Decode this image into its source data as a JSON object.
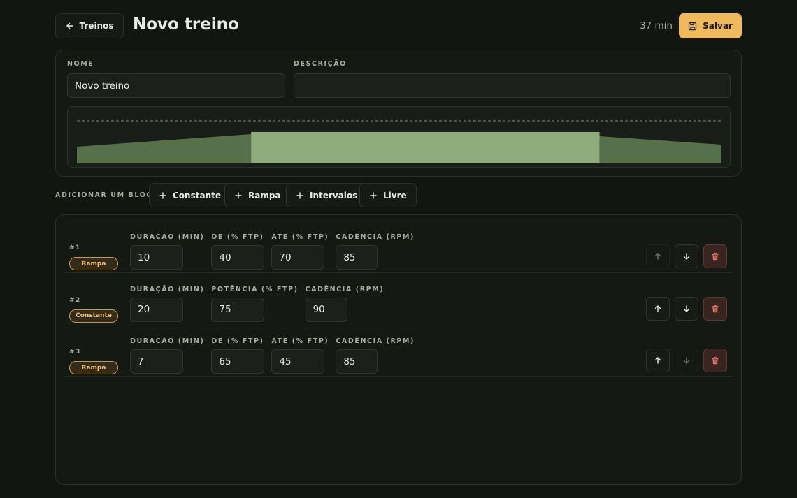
{
  "header": {
    "back": "Treinos",
    "title": "Novo treino",
    "total": "37 min",
    "save": "Salvar"
  },
  "form": {
    "name_label": "NOME",
    "name_value": "Novo treino",
    "description_label": "DESCRIÇÃO"
  },
  "add": {
    "label": "ADICIONAR UM BLOCO:",
    "buttons": [
      "Constante",
      "Rampa",
      "Intervalos",
      "Livre"
    ]
  },
  "blocks": [
    {
      "index": "#1",
      "type": "Rampa",
      "fields": [
        {
          "label": "DURAÇÃO (MIN)",
          "value": 10
        },
        {
          "label": "DE (% FTP)",
          "value": 40
        },
        {
          "label": "ATÉ (% FTP)",
          "value": 70
        },
        {
          "label": "CADÊNCIA (RPM)",
          "value": 85
        }
      ]
    },
    {
      "index": "#2",
      "type": "Constante",
      "fields": [
        {
          "label": "DURAÇÃO (MIN)",
          "value": 20
        },
        {
          "label": "POTÊNCIA (% FTP)",
          "value": 75
        },
        {
          "label": "CADÊNCIA (RPM)",
          "value": 90
        }
      ]
    },
    {
      "index": "#3",
      "type": "Rampa",
      "fields": [
        {
          "label": "DURAÇÃO (MIN)",
          "value": 7
        },
        {
          "label": "DE (% FTP)",
          "value": 65
        },
        {
          "label": "ATÉ (% FTP)",
          "value": 45
        },
        {
          "label": "CADÊNCIA (RPM)",
          "value": 85
        }
      ]
    }
  ]
}
